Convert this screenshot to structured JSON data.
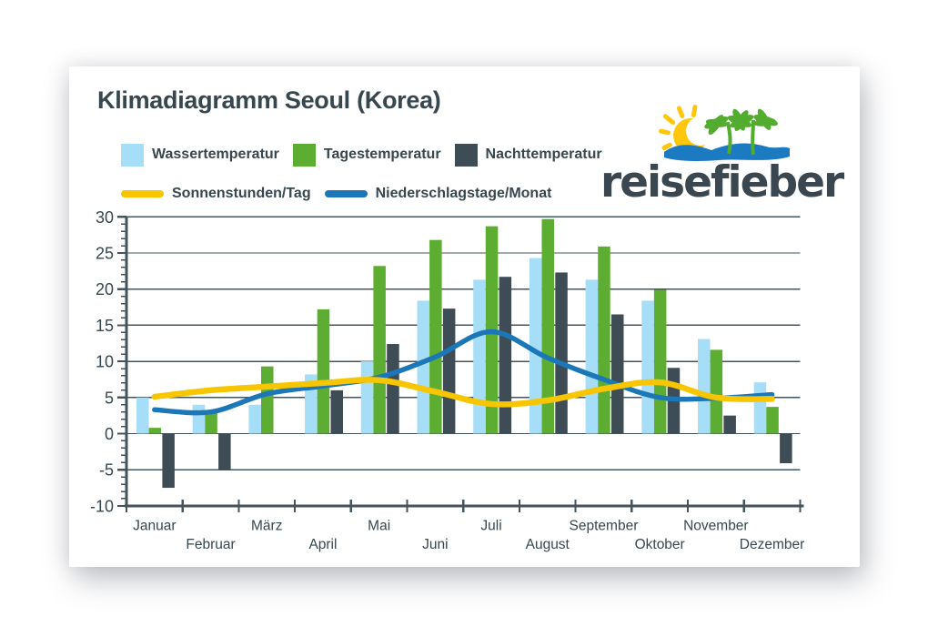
{
  "title": "Klimadiagramm Seoul (Korea)",
  "logo": {
    "text": "reisefieber",
    "sun_color": "#FFC60B",
    "palm_color": "#52AC2E",
    "wave_color": "#1B7AC0",
    "text_color": "#3A4750"
  },
  "legend": {
    "items": [
      {
        "label": "Wassertemperatur",
        "color": "#A6DEF7",
        "swatch": "square"
      },
      {
        "label": "Tagestemperatur",
        "color": "#5CAD31",
        "swatch": "square"
      },
      {
        "label": "Nachttemperatur",
        "color": "#3D4C55",
        "swatch": "square"
      },
      {
        "label": "Sonnenstunden/Tag",
        "color": "#F7C600",
        "swatch": "line"
      },
      {
        "label": "Niederschlagstage/Monat",
        "color": "#1B77B8",
        "swatch": "line"
      }
    ]
  },
  "chart_data": {
    "type": "bar+line combo",
    "title": "Klimadiagramm Seoul (Korea)",
    "categories": [
      "Januar",
      "Februar",
      "März",
      "April",
      "Mai",
      "Juni",
      "Juli",
      "August",
      "September",
      "Oktober",
      "November",
      "Dezember"
    ],
    "series": [
      {
        "name": "Wassertemperatur",
        "type": "bar",
        "color": "#A6DEF7",
        "values": [
          5,
          4,
          4,
          8.2,
          10,
          18.4,
          21.3,
          24.3,
          21.3,
          18.4,
          13.1,
          7.1
        ]
      },
      {
        "name": "Tagestemperatur",
        "type": "bar",
        "color": "#5CAD31",
        "values": [
          0.8,
          3.1,
          9.3,
          17.2,
          23.2,
          26.8,
          28.7,
          29.7,
          25.9,
          19.9,
          11.6,
          3.7
        ]
      },
      {
        "name": "Nachttemperatur",
        "type": "bar",
        "color": "#3D4C55",
        "values": [
          -7.5,
          -5,
          0,
          6,
          12.4,
          17.3,
          21.7,
          22.3,
          16.5,
          9.1,
          2.5,
          -4.1
        ]
      },
      {
        "name": "Sonnenstunden/Tag",
        "type": "line",
        "color": "#F7C600",
        "width": 6.5,
        "values": [
          5.1,
          6,
          6.5,
          7,
          7.4,
          5.8,
          4.1,
          4.6,
          6.2,
          7.1,
          5,
          4.8
        ]
      },
      {
        "name": "Niederschlagstage/Monat",
        "type": "line",
        "color": "#1B77B8",
        "width": 5.5,
        "values": [
          3.3,
          3,
          5.5,
          6.6,
          7.8,
          10.6,
          14.1,
          10.5,
          7.5,
          5,
          4.9,
          5.4
        ]
      }
    ],
    "ylim": [
      -10,
      30
    ],
    "yticks": [
      -10,
      -5,
      0,
      5,
      10,
      15,
      20,
      25,
      30
    ],
    "minor_tick_step": 1,
    "grid": true,
    "axis_color": "#44545E",
    "text_color": "#37474F",
    "legend_position": "top-left"
  }
}
